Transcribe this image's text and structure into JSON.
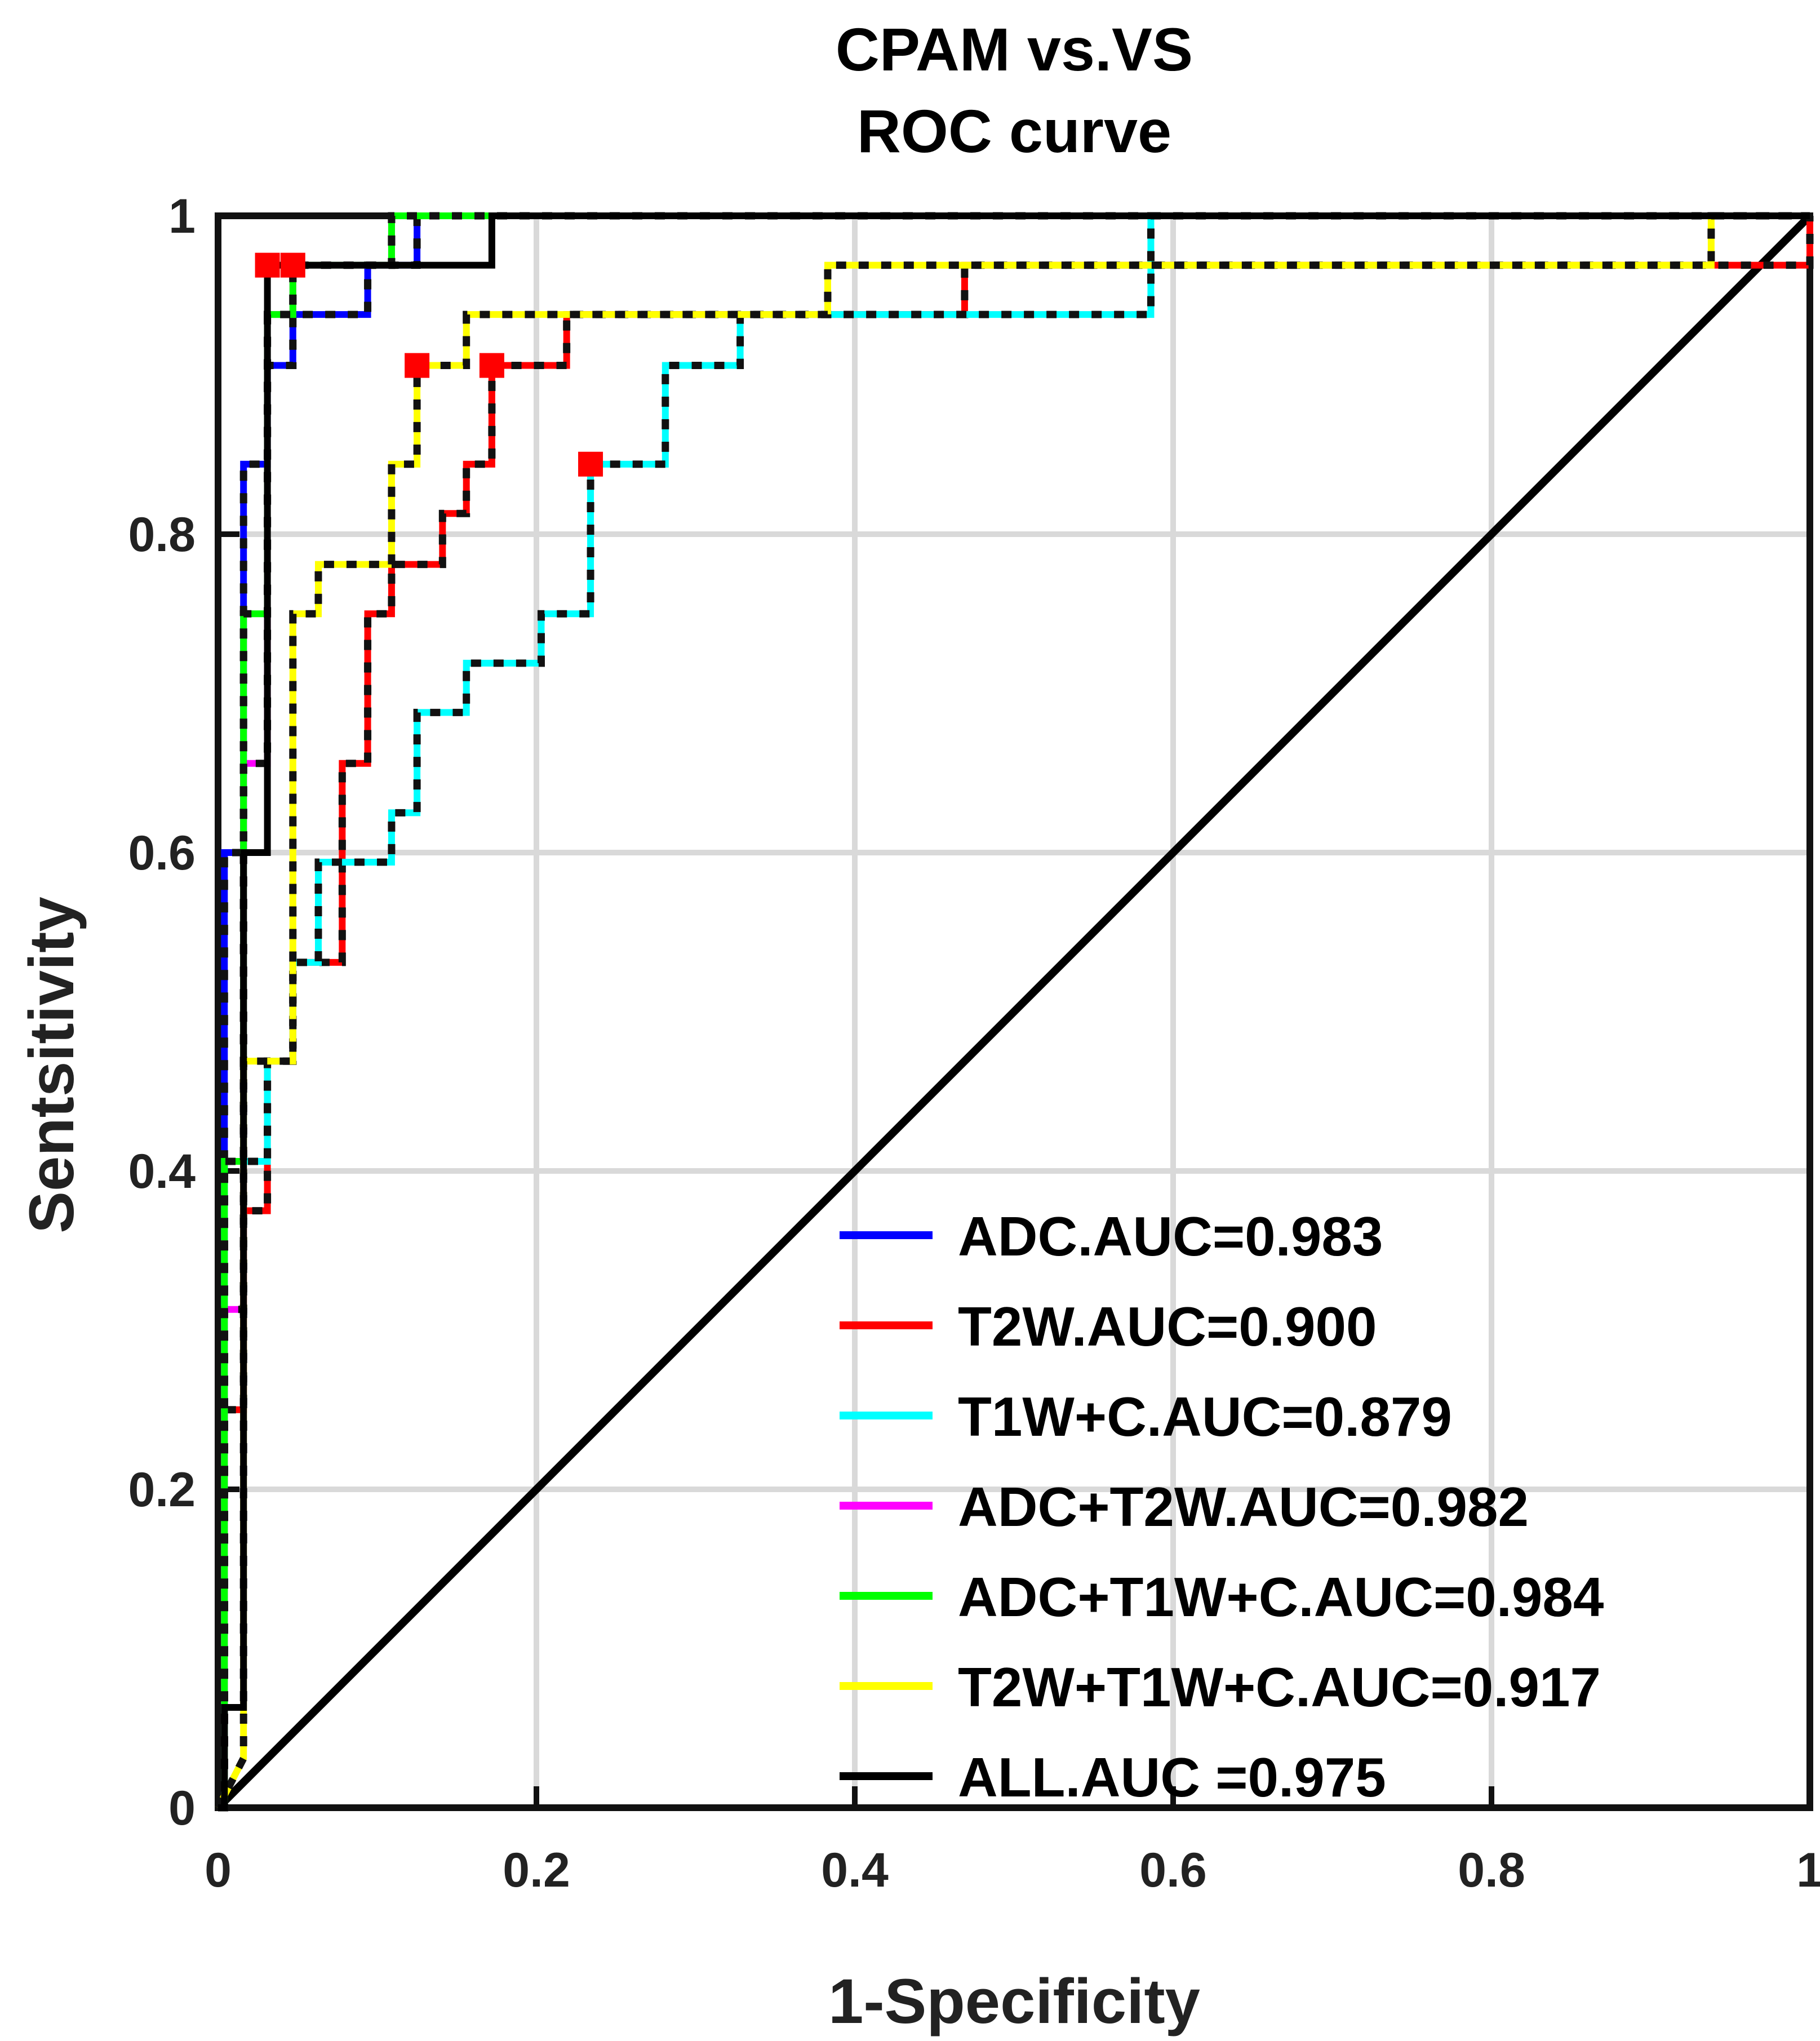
{
  "chart_data": {
    "type": "line",
    "title": [
      "CPAM vs.VS",
      "ROC curve"
    ],
    "xlabel": "1-Specificity",
    "ylabel": "Sentsitivity",
    "xlim": [
      0,
      1
    ],
    "ylim": [
      0,
      1
    ],
    "xticks": [
      0,
      0.2,
      0.4,
      0.6,
      0.8,
      1
    ],
    "xtick_labels": [
      "0",
      "0.2",
      "0.4",
      "0.6",
      "0.8",
      "1"
    ],
    "yticks": [
      0,
      0.2,
      0.4,
      0.6,
      0.8,
      1
    ],
    "ytick_labels": [
      "0",
      "0.2",
      "0.4",
      "0.6",
      "0.8",
      "1"
    ],
    "grid": true,
    "legend_position": "bottom-right",
    "series": [
      {
        "name": "ADC.AUC=0.983",
        "color": "#0000ff",
        "x": [
          0,
          0.004,
          0.004,
          0.016,
          0.016,
          0.031,
          0.031,
          0.047,
          0.047,
          0.094,
          0.094,
          0.125,
          0.125,
          0.172,
          0.172,
          1
        ],
        "y": [
          0,
          0,
          0.6,
          0.6,
          0.844,
          0.844,
          0.906,
          0.906,
          0.938,
          0.938,
          0.969,
          0.969,
          1,
          1,
          1,
          1
        ]
      },
      {
        "name": "T2W.AUC=0.900",
        "color": "#ff0000",
        "x": [
          0,
          0.004,
          0.004,
          0.016,
          0.016,
          0.031,
          0.031,
          0.047,
          0.047,
          0.078,
          0.078,
          0.094,
          0.094,
          0.109,
          0.109,
          0.125,
          0.125,
          0.141,
          0.141,
          0.156,
          0.156,
          0.172,
          0.172,
          0.219,
          0.219,
          0.469,
          0.469,
          0.969,
          0.969,
          1,
          1
        ],
        "y": [
          0,
          0,
          0.25,
          0.25,
          0.375,
          0.375,
          0.469,
          0.469,
          0.531,
          0.531,
          0.656,
          0.656,
          0.75,
          0.75,
          0.781,
          0.781,
          0.781,
          0.781,
          0.813,
          0.813,
          0.844,
          0.844,
          0.906,
          0.906,
          0.938,
          0.938,
          0.969,
          0.969,
          0.969,
          0.969,
          1
        ]
      },
      {
        "name": "T1W+C.AUC=0.879",
        "color": "#00ffff",
        "x": [
          0,
          0.004,
          0.004,
          0.031,
          0.031,
          0.047,
          0.047,
          0.063,
          0.063,
          0.109,
          0.109,
          0.125,
          0.125,
          0.156,
          0.156,
          0.203,
          0.203,
          0.234,
          0.234,
          0.281,
          0.281,
          0.328,
          0.328,
          0.586,
          0.586,
          1
        ],
        "y": [
          0,
          0,
          0.406,
          0.406,
          0.469,
          0.469,
          0.531,
          0.531,
          0.594,
          0.594,
          0.625,
          0.625,
          0.688,
          0.688,
          0.719,
          0.719,
          0.75,
          0.75,
          0.844,
          0.844,
          0.906,
          0.906,
          0.938,
          0.938,
          1,
          1
        ]
      },
      {
        "name": "ADC+T2W.AUC=0.982",
        "color": "#ff00ff",
        "x": [
          0,
          0.004,
          0.004,
          0.016,
          0.016,
          0.031,
          0.031,
          0.047,
          0.047,
          0.109,
          0.109,
          1
        ],
        "y": [
          0,
          0,
          0.313,
          0.313,
          0.656,
          0.656,
          0.938,
          0.938,
          0.969,
          0.969,
          1,
          1
        ]
      },
      {
        "name": "ADC+T1W+C.AUC=0.984",
        "color": "#00ff00",
        "x": [
          0,
          0.004,
          0.004,
          0.016,
          0.016,
          0.031,
          0.031,
          0.047,
          0.047,
          0.109,
          0.109,
          1
        ],
        "y": [
          0,
          0,
          0.406,
          0.406,
          0.75,
          0.75,
          0.938,
          0.938,
          0.969,
          0.969,
          1,
          1
        ]
      },
      {
        "name": "T2W+T1W+C.AUC=0.917",
        "color": "#ffff00",
        "x": [
          0,
          0.016,
          0.016,
          0.047,
          0.047,
          0.063,
          0.063,
          0.109,
          0.109,
          0.125,
          0.125,
          0.156,
          0.156,
          0.383,
          0.383,
          0.938,
          0.938,
          1
        ],
        "y": [
          0,
          0.031,
          0.469,
          0.469,
          0.75,
          0.75,
          0.781,
          0.781,
          0.844,
          0.844,
          0.906,
          0.906,
          0.938,
          0.938,
          0.969,
          0.969,
          1,
          1
        ]
      },
      {
        "name": "ALL.AUC =0.975",
        "color": "#000000",
        "x": [
          0,
          0.004,
          0.004,
          0.016,
          0.016,
          0.031,
          0.031,
          0.172,
          0.172,
          1
        ],
        "y": [
          0,
          0,
          0.063,
          0.063,
          0.6,
          0.6,
          0.969,
          0.969,
          1,
          1
        ]
      }
    ],
    "marker_points": [
      {
        "x": 0.031,
        "y": 0.969
      },
      {
        "x": 0.047,
        "y": 0.969
      },
      {
        "x": 0.125,
        "y": 0.906
      },
      {
        "x": 0.172,
        "y": 0.906
      },
      {
        "x": 0.234,
        "y": 0.844
      }
    ],
    "reference_line": {
      "x": [
        0,
        1
      ],
      "y": [
        0,
        1
      ],
      "color": "#000000"
    }
  }
}
